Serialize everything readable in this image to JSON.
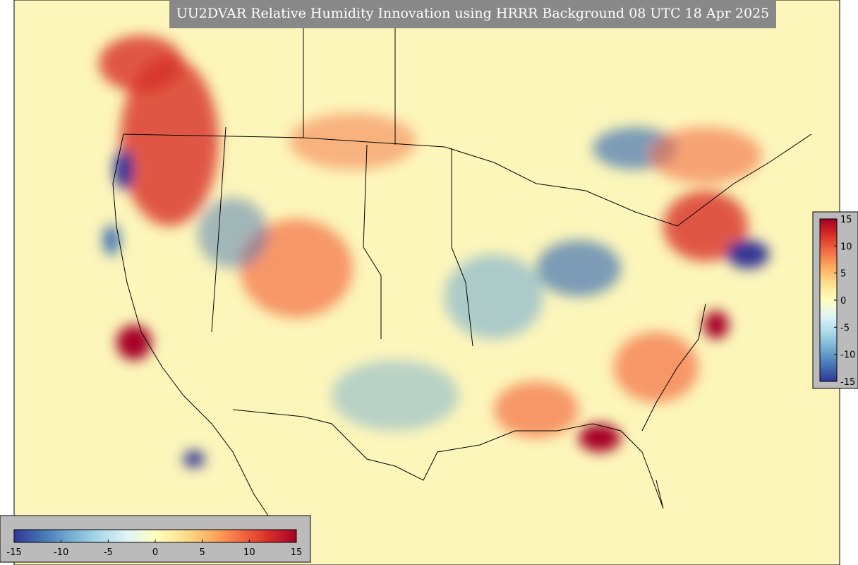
{
  "title": "UU2DVAR Relative Humidity Innovation using HRRR Background 08 UTC 18 Apr 2025",
  "colormap": [
    "#313695",
    "#4575b4",
    "#74add1",
    "#abd9e9",
    "#e0f3f8",
    "#ffffbf",
    "#fee090",
    "#fdae61",
    "#f46d43",
    "#d73027",
    "#a50026"
  ],
  "colorbars": [
    {
      "orientation": "horizontal",
      "lim": [
        -15,
        15
      ],
      "ticks": [
        -15,
        -10,
        -5,
        0,
        5,
        10,
        15
      ]
    },
    {
      "orientation": "vertical",
      "lim": [
        -15,
        15
      ],
      "ticks": [
        15,
        10,
        5,
        0,
        -5,
        -10,
        -15
      ]
    }
  ]
}
